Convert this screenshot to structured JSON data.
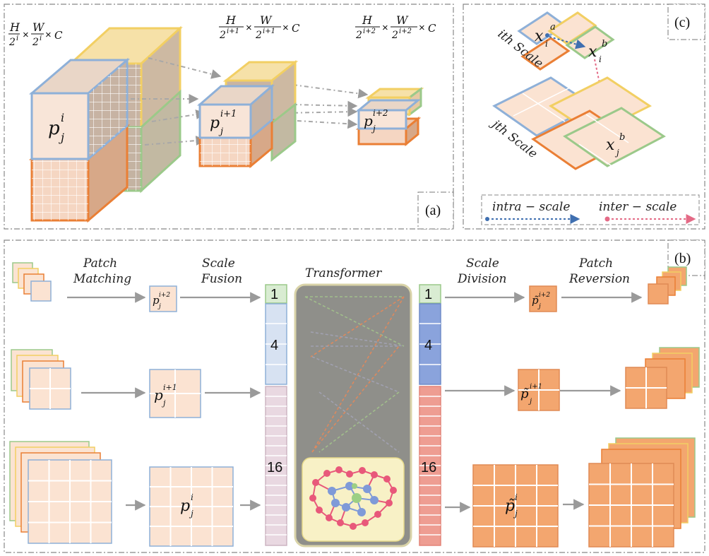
{
  "colors": {
    "blue_border": "#8eb0d8",
    "yellow_border": "#f2cf63",
    "green_border": "#9bc98a",
    "orange_border": "#ea7f35",
    "light_fill": "#fbe3d2",
    "orange_fill": "#f3a66f",
    "transformer_bg": "#8f8f8a",
    "graph_bg": "#f8f1c6",
    "graph_red": "#e8587a",
    "graph_blue": "#7f9ad8",
    "graph_green": "#9ccf84",
    "token_green": "#d9ecd2",
    "token_blue_light": "#d7e2f2",
    "token_pink": "#e9d8e1",
    "token_blue_dark": "#8aa3dc",
    "token_red": "#ee9d92"
  },
  "panel_a": {
    "tag": "(a)",
    "dims": [
      {
        "h": "H",
        "w": "W",
        "denom": "2",
        "exp": "i",
        "c": "C"
      },
      {
        "h": "H",
        "w": "W",
        "denom": "2",
        "exp": "i+1",
        "c": "C"
      },
      {
        "h": "H",
        "w": "W",
        "denom": "2",
        "exp": "i+2",
        "c": "C"
      }
    ],
    "times": "×",
    "cube_labels": [
      {
        "base": "p",
        "sub": "j",
        "sup": "i"
      },
      {
        "base": "p",
        "sub": "j",
        "sup": "i+1"
      },
      {
        "base": "p",
        "sub": "j",
        "sup": "i+2"
      }
    ]
  },
  "panel_c": {
    "tag": "(c)",
    "scale_top": "ith  Scale",
    "scale_bottom": "jth  Scale",
    "points": [
      {
        "base": "x",
        "sub": "i",
        "sup": "a"
      },
      {
        "base": "x",
        "sub": "i",
        "sup": "b"
      },
      {
        "base": "x",
        "sub": "j",
        "sup": "b"
      }
    ],
    "legend": [
      "intra − scale",
      "inter − scale"
    ]
  },
  "panel_b": {
    "tag": "(b)",
    "steps": [
      "Patch",
      "Matching",
      "Scale",
      "Fusion",
      "Transformer",
      "Scale",
      "Division",
      "Patch",
      "Reversion"
    ],
    "tokens": [
      "1",
      "4",
      "16"
    ],
    "patch_labels": [
      {
        "base": "p",
        "sub": "j",
        "sup": "i+2"
      },
      {
        "base": "p",
        "sub": "j",
        "sup": "i+1"
      },
      {
        "base": "p",
        "sub": "j",
        "sup": "i"
      }
    ],
    "out_labels": [
      {
        "base": "p̃",
        "sub": "j",
        "sup": "i+2"
      },
      {
        "base": "p̃",
        "sub": "j",
        "sup": "i+1"
      },
      {
        "base": "p̃",
        "sub": "j",
        "sup": "i"
      }
    ]
  }
}
